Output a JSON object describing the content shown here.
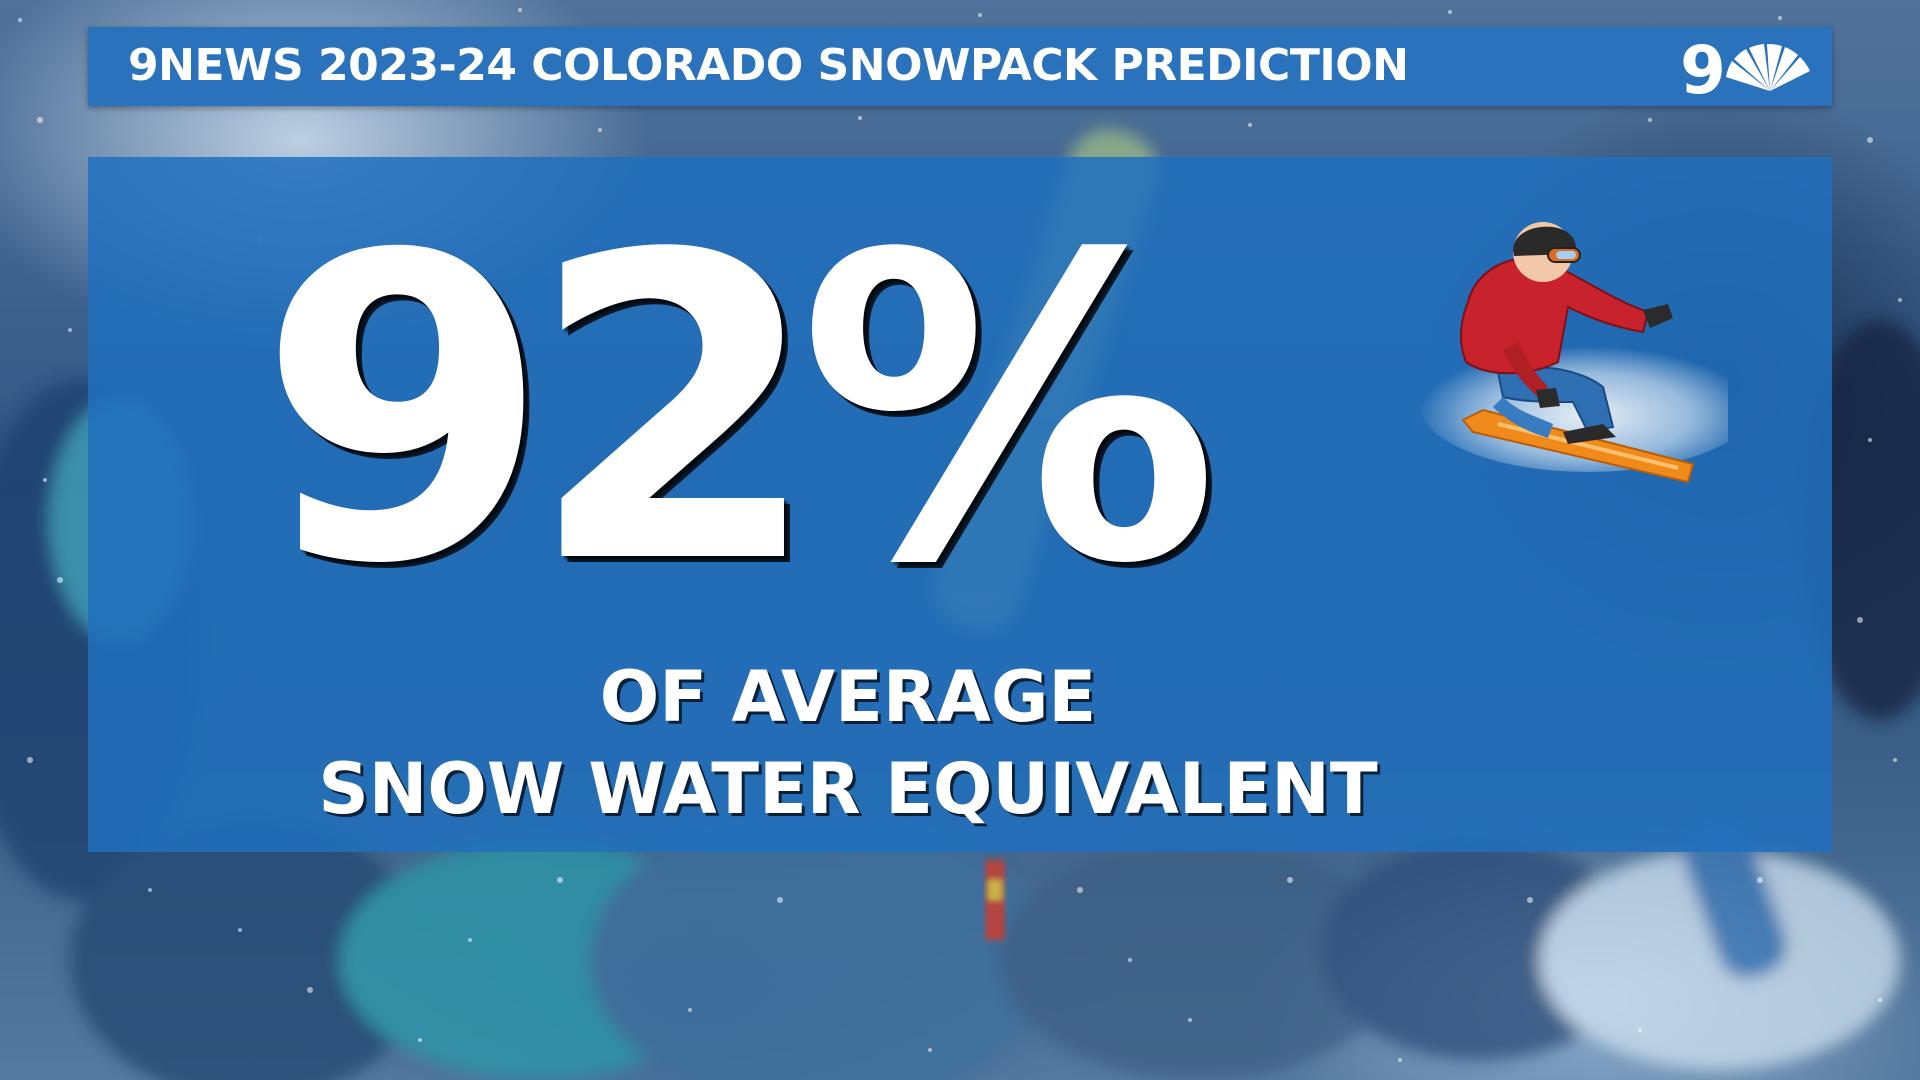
{
  "header": {
    "title": "9NEWS 2023-24 COLORADO SNOWPACK PREDICTION",
    "logo": "9-nbc-peacock-logo"
  },
  "main": {
    "percent": "92%",
    "line1": "OF AVERAGE",
    "line2": "SNOW WATER EQUIVALENT",
    "illustration": "snowboarder-icon"
  },
  "colors": {
    "panel_blue": "#2170be",
    "title_bar_blue": "#2a72bb",
    "text": "#ffffff"
  }
}
